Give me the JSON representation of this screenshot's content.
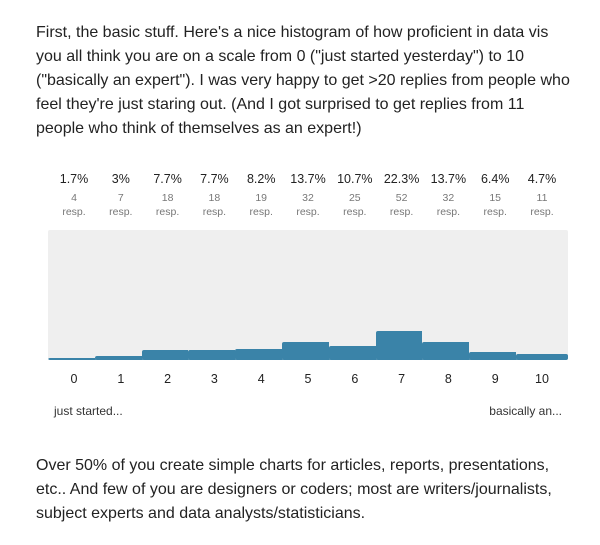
{
  "intro_text": "First, the basic stuff. Here's a nice histogram of how proficient in data vis you all think you are on a scale from 0 (\"just started yesterday\") to 10 (\"basically an expert\"). I was very happy to get >20 replies from people who feel they're just staring out. (And I got surprised to get replies from 11 people who think of themselves as an expert!)",
  "outro_text": "Over 50% of you create simple charts for articles, reports, presentations, etc.. And few of you are designers or coders; most are writers/journalists, subject experts and data analysts/statisticians.",
  "chart_data": {
    "type": "bar",
    "categories": [
      "0",
      "1",
      "2",
      "3",
      "4",
      "5",
      "6",
      "7",
      "8",
      "9",
      "10"
    ],
    "percents": [
      "1.7%",
      "3%",
      "7.7%",
      "7.7%",
      "8.2%",
      "13.7%",
      "10.7%",
      "22.3%",
      "13.7%",
      "6.4%",
      "4.7%"
    ],
    "values": [
      4,
      7,
      18,
      18,
      19,
      32,
      25,
      52,
      32,
      15,
      11
    ],
    "count_unit": "resp.",
    "ylim": [
      0,
      233
    ],
    "bar_color": "#3a83a8",
    "track_color": "#efefef",
    "left_end_label": "just started...",
    "right_end_label": "basically an..."
  }
}
